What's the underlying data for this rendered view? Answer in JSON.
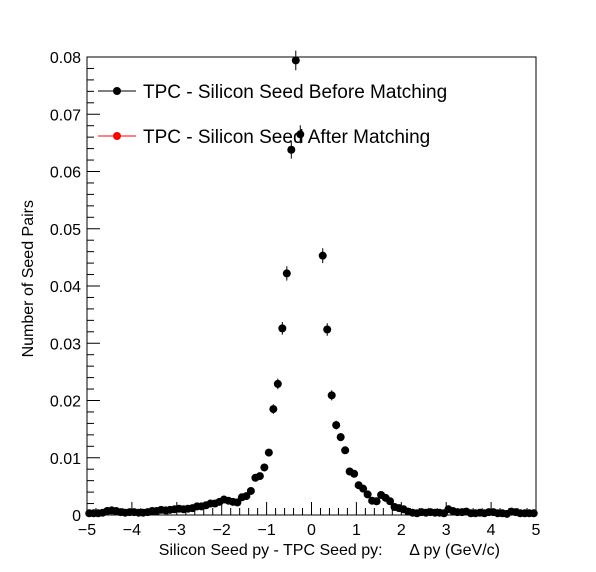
{
  "chart_data": {
    "type": "scatter",
    "xlabel": "Silicon Seed py - TPC Seed py:      Δ py (GeV/c)",
    "ylabel": "Number of Seed Pairs",
    "xlim": [
      -5,
      5
    ],
    "ylim": [
      0,
      0.08
    ],
    "x_ticks": [
      -5,
      -4,
      -3,
      -2,
      -1,
      0,
      1,
      2,
      3,
      4,
      5
    ],
    "y_ticks": [
      0,
      0.01,
      0.02,
      0.03,
      0.04,
      0.05,
      0.06,
      0.07,
      0.08
    ],
    "x_tick_labels": [
      "−5",
      "−4",
      "−3",
      "−2",
      "−1",
      "0",
      "1",
      "2",
      "3",
      "4",
      "5"
    ],
    "y_tick_labels": [
      "0",
      "0.01",
      "0.02",
      "0.03",
      "0.04",
      "0.05",
      "0.06",
      "0.07",
      "0.08"
    ],
    "grid": false,
    "legend_position": "top-left",
    "series": [
      {
        "name": "TPC - Silicon Seed Before Matching",
        "color": "#000000",
        "x": [
          -4.95,
          -4.85,
          -4.75,
          -4.65,
          -4.55,
          -4.45,
          -4.35,
          -4.25,
          -4.15,
          -4.05,
          -3.95,
          -3.85,
          -3.75,
          -3.65,
          -3.55,
          -3.45,
          -3.35,
          -3.25,
          -3.15,
          -3.05,
          -2.95,
          -2.85,
          -2.75,
          -2.65,
          -2.55,
          -2.45,
          -2.35,
          -2.25,
          -2.15,
          -2.05,
          -1.95,
          -1.85,
          -1.75,
          -1.65,
          -1.55,
          -1.45,
          -1.35,
          -1.25,
          -1.15,
          -1.05,
          -0.95,
          -0.85,
          -0.75,
          -0.65,
          -0.55,
          -0.45,
          -0.35,
          -0.25,
          0.25,
          0.35,
          0.45,
          0.55,
          0.65,
          0.75,
          0.85,
          0.95,
          1.05,
          1.15,
          1.25,
          1.35,
          1.45,
          1.55,
          1.65,
          1.75,
          1.85,
          1.95,
          2.05,
          2.15,
          2.25,
          2.35,
          2.45,
          2.55,
          2.65,
          2.75,
          2.85,
          2.95,
          3.05,
          3.15,
          3.25,
          3.35,
          3.45,
          3.55,
          3.65,
          3.75,
          3.85,
          3.95,
          4.05,
          4.15,
          4.25,
          4.35,
          4.45,
          4.55,
          4.65,
          4.75,
          4.85,
          4.95
        ],
        "y": [
          0.0003,
          0.0003,
          0.0003,
          0.0004,
          0.0007,
          0.0008,
          0.0007,
          0.0005,
          0.0004,
          0.0005,
          0.0005,
          0.0004,
          0.0004,
          0.0005,
          0.0007,
          0.0007,
          0.0009,
          0.0008,
          0.0009,
          0.001,
          0.0011,
          0.001,
          0.0011,
          0.0012,
          0.0015,
          0.0015,
          0.0017,
          0.002,
          0.002,
          0.0023,
          0.0027,
          0.0025,
          0.0023,
          0.0022,
          0.0031,
          0.0033,
          0.0042,
          0.0065,
          0.0068,
          0.0083,
          0.0109,
          0.0185,
          0.0229,
          0.0326,
          0.0422,
          0.0638,
          0.0794,
          0.0665,
          0.0453,
          0.0324,
          0.0209,
          0.0157,
          0.0136,
          0.0113,
          0.0076,
          0.0072,
          0.0052,
          0.0046,
          0.0036,
          0.0025,
          0.0024,
          0.0035,
          0.003,
          0.0024,
          0.0014,
          0.0012,
          0.001,
          0.0006,
          0.0004,
          0.0003,
          0.0005,
          0.0004,
          0.0005,
          0.0004,
          0.0004,
          0.0003,
          0.001,
          0.0007,
          0.0005,
          0.0005,
          0.0006,
          0.0003,
          0.0003,
          0.0004,
          0.0003,
          0.0005,
          0.0005,
          0.0003,
          0.0003,
          0.0002,
          0.0006,
          0.0005,
          0.0003,
          0.0003,
          0.0003,
          0.0003
        ]
      },
      {
        "name": "TPC - Silicon Seed After Matching",
        "color": "#ff0000",
        "x": [],
        "y": []
      }
    ]
  }
}
